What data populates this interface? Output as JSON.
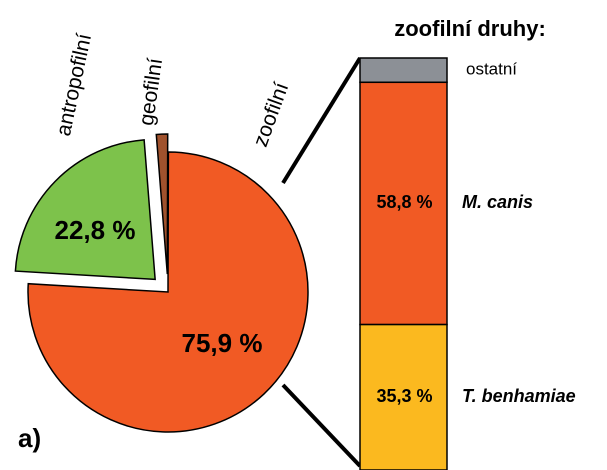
{
  "chart_data": [
    {
      "type": "pie",
      "panel_label": "a)",
      "categories": [
        "antropofilní",
        "geofilní",
        "zoofilní"
      ],
      "values": [
        22.8,
        1.3,
        75.9
      ],
      "value_labels": [
        "22,8 %",
        null,
        "75,9 %"
      ],
      "colors": [
        "#7dc24b",
        "#a0522d",
        "#f15a24"
      ]
    },
    {
      "type": "stacked_bar",
      "title": "zoofilní druhy:",
      "categories": [
        "ostatní",
        "M. canis",
        "T. benhamiae"
      ],
      "values": [
        5.9,
        58.8,
        35.3
      ],
      "value_labels": [
        null,
        "58,8 %",
        "35,3 %"
      ],
      "colors": [
        "#8c9096",
        "#f15a24",
        "#fbb91f"
      ]
    }
  ]
}
